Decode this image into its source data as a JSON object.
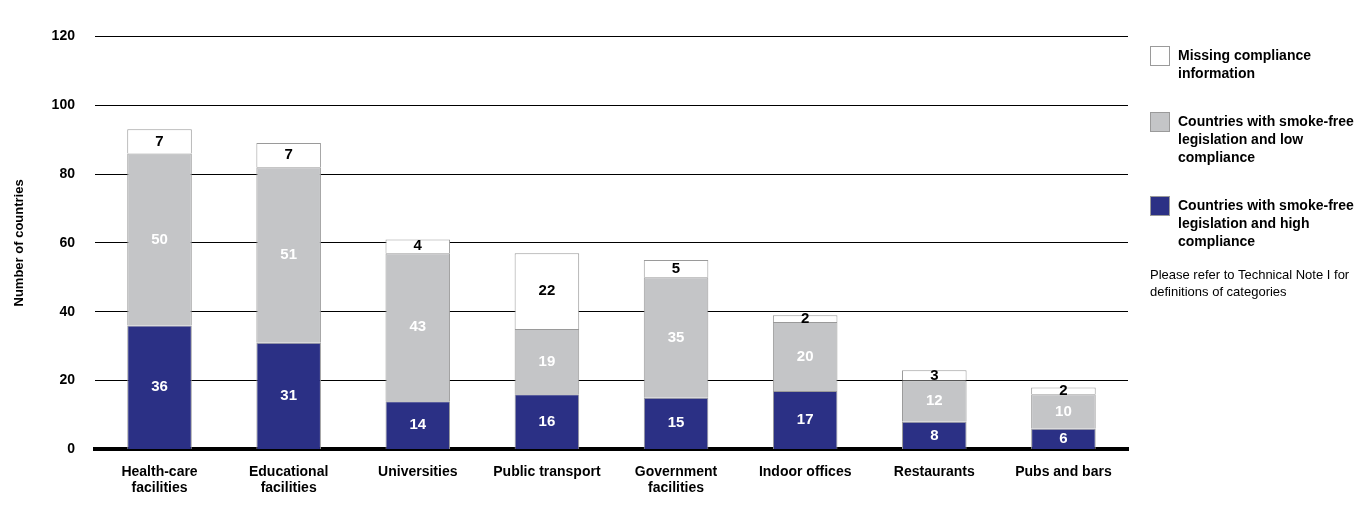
{
  "chart_data": {
    "type": "bar",
    "ylabel": "Number of countries",
    "categories": [
      "Health-care facilities",
      "Educational facilities",
      "Universities",
      "Public transport",
      "Government facilities",
      "Indoor offices",
      "Restaurants",
      "Pubs and bars"
    ],
    "series": [
      {
        "name": "Countries with smoke-free legislation and high compliance",
        "color": "#2b3085",
        "values": [
          36,
          31,
          14,
          16,
          15,
          17,
          8,
          6
        ]
      },
      {
        "name": "Countries with smoke-free legislation and low compliance",
        "color": "#c4c5c7",
        "values": [
          50,
          51,
          43,
          19,
          35,
          20,
          12,
          10
        ]
      },
      {
        "name": "Missing compliance information",
        "color": "#ffffff",
        "values": [
          7,
          7,
          4,
          22,
          5,
          2,
          3,
          2
        ]
      }
    ],
    "stacked": true,
    "ylim": [
      0,
      120
    ],
    "yticks": [
      0,
      20,
      40,
      60,
      80,
      100,
      120
    ],
    "grid": "y",
    "legend": "right",
    "data_labels": true,
    "annotations": [
      "Please refer to Technical Note I for definitions of categories"
    ]
  }
}
